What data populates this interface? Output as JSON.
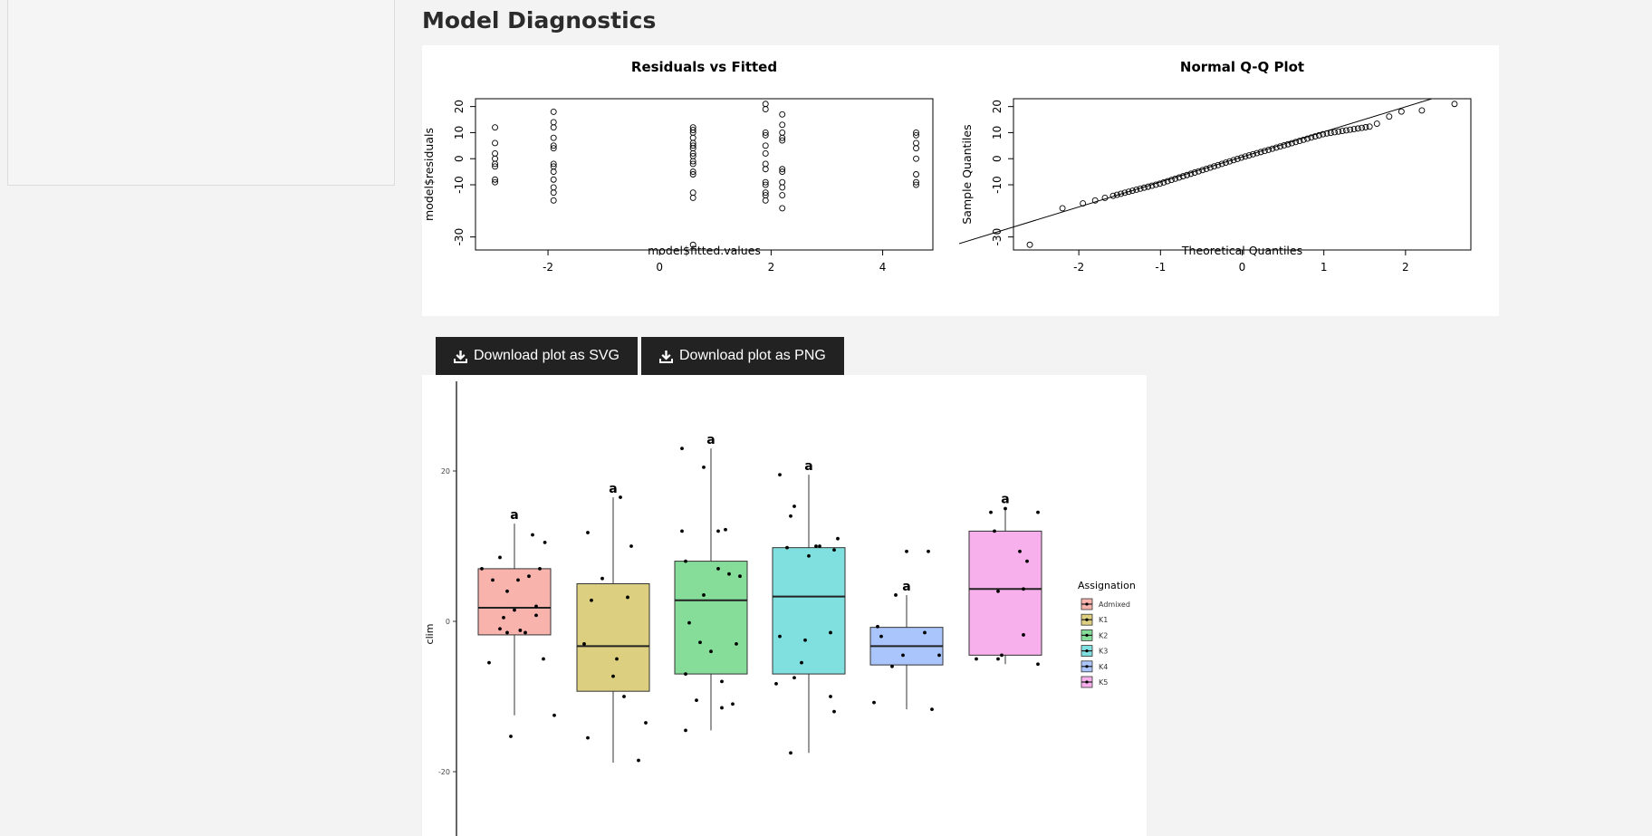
{
  "page": {
    "title": "Model Diagnostics",
    "download_svg_label": "Download plot as SVG",
    "download_png_label": "Download plot as PNG",
    "download_icon": "download-icon"
  },
  "chart_data": [
    {
      "type": "scatter",
      "title": "Residuals vs Fitted",
      "xlabel": "model$fitted.values",
      "ylabel": "model$residuals",
      "xlim": [
        -3.3,
        4.9
      ],
      "ylim": [
        -35,
        23
      ],
      "x_ticks": [
        "-2",
        "0",
        "2",
        "4"
      ],
      "x_tick_values": [
        -2,
        0,
        2,
        4
      ],
      "y_ticks": [
        "-30",
        "-10",
        "0",
        "10",
        "20"
      ],
      "y_tick_values": [
        -30,
        -10,
        0,
        10,
        20
      ],
      "groups": [
        {
          "x": -2.95,
          "y": [
            12,
            6,
            2,
            0,
            -2,
            -3,
            -8,
            -9
          ]
        },
        {
          "x": -1.9,
          "y": [
            18,
            14,
            12,
            8,
            5,
            4,
            -2,
            -3,
            -5,
            -8,
            -11,
            -13,
            -16
          ]
        },
        {
          "x": 0.6,
          "y": [
            12,
            11,
            10,
            8,
            6,
            5,
            4,
            2,
            1,
            -1,
            -2,
            -5,
            -6,
            -13,
            -15,
            -33
          ]
        },
        {
          "x": 1.9,
          "y": [
            21,
            19,
            10,
            9,
            5,
            2,
            -2,
            -4,
            -9,
            -10,
            -13,
            -14,
            -16
          ]
        },
        {
          "x": 2.2,
          "y": [
            17,
            13,
            10,
            8,
            7,
            -4,
            -5,
            -9,
            -11,
            -14,
            -19
          ]
        },
        {
          "x": 4.6,
          "y": [
            10,
            9,
            6,
            4,
            0,
            -6,
            -9,
            -10
          ]
        }
      ]
    },
    {
      "type": "scatter",
      "title": "Normal Q-Q Plot",
      "xlabel": "Theoretical Quantiles",
      "ylabel": "Sample Quantiles",
      "xlim": [
        -2.8,
        2.8
      ],
      "ylim": [
        -35,
        23
      ],
      "x_ticks": [
        "-2",
        "-1",
        "0",
        "1",
        "2"
      ],
      "x_tick_values": [
        -2,
        -1,
        0,
        1,
        2
      ],
      "y_ticks": [
        "-30",
        "-10",
        "0",
        "10",
        "20"
      ],
      "y_tick_values": [
        -30,
        -10,
        0,
        10,
        20
      ],
      "ref_line": {
        "intercept": 0.7,
        "slope": 9.6
      },
      "n_points": 77,
      "quantile_anchors": [
        {
          "x": -2.6,
          "y": -33
        },
        {
          "x": -2.2,
          "y": -19
        },
        {
          "x": -1.8,
          "y": -16
        },
        {
          "x": -1.0,
          "y": -9.5
        },
        {
          "x": 0.0,
          "y": 0.5
        },
        {
          "x": 1.0,
          "y": 9.5
        },
        {
          "x": 1.6,
          "y": 12.5
        },
        {
          "x": 1.9,
          "y": 18
        },
        {
          "x": 2.2,
          "y": 18.5
        },
        {
          "x": 2.6,
          "y": 21
        }
      ]
    },
    {
      "type": "box",
      "ylabel": "clim",
      "y_ticks": [
        "20",
        "0",
        "-20"
      ],
      "y_tick_values": [
        20,
        0,
        -20
      ],
      "ylim": [
        -29,
        32
      ],
      "legend_title": "Assignation",
      "legend_position": "right",
      "groups": [
        {
          "name": "Admixed",
          "color": "#f8b3ad",
          "q1": -1.8,
          "median": 1.8,
          "q3": 7,
          "whisker_low": -12.5,
          "whisker_high": 13,
          "letter": "a",
          "points": [
            [
              -0.45,
              7
            ],
            [
              -0.3,
              5.5
            ],
            [
              -0.2,
              8.5
            ],
            [
              -0.1,
              4
            ],
            [
              0.05,
              5.5
            ],
            [
              0.2,
              6
            ],
            [
              0.35,
              7
            ],
            [
              -0.35,
              -5.5
            ],
            [
              -0.15,
              0.5
            ],
            [
              0,
              1.5
            ],
            [
              0.15,
              -1.5
            ],
            [
              0.3,
              2
            ],
            [
              -0.05,
              -15.3
            ],
            [
              0.25,
              11.5
            ],
            [
              0.42,
              10.5
            ],
            [
              0.55,
              -12.5
            ],
            [
              0.4,
              -5
            ],
            [
              -0.1,
              -1.5
            ],
            [
              0.08,
              -1.2
            ],
            [
              0.3,
              0.8
            ],
            [
              -0.2,
              -1
            ]
          ]
        },
        {
          "name": "K1",
          "color": "#dccf7f",
          "q1": -9.3,
          "median": -3.3,
          "q3": 5,
          "whisker_low": -18.8,
          "whisker_high": 16.5,
          "letter": "a",
          "points": [
            [
              -0.35,
              11.8
            ],
            [
              -0.15,
              5.7
            ],
            [
              0.1,
              16.5
            ],
            [
              0.25,
              10
            ],
            [
              -0.3,
              2.8
            ],
            [
              0.2,
              3.2
            ],
            [
              -0.4,
              -3
            ],
            [
              0.05,
              -5
            ],
            [
              0,
              -7.3
            ],
            [
              0.15,
              -10
            ],
            [
              -0.35,
              -15.5
            ],
            [
              0.45,
              -13.5
            ],
            [
              0.35,
              -18.5
            ]
          ]
        },
        {
          "name": "K2",
          "color": "#86dd9a",
          "q1": -7,
          "median": 2.8,
          "q3": 8,
          "whisker_low": -14.5,
          "whisker_high": 23,
          "letter": "a",
          "points": [
            [
              -0.4,
              23
            ],
            [
              -0.1,
              20.5
            ],
            [
              0.1,
              12
            ],
            [
              -0.4,
              12
            ],
            [
              0.2,
              12.2
            ],
            [
              -0.35,
              8
            ],
            [
              0.1,
              7
            ],
            [
              0.4,
              6
            ],
            [
              -0.1,
              3.5
            ],
            [
              0.25,
              6.3
            ],
            [
              -0.3,
              -0.2
            ],
            [
              -0.15,
              -2.8
            ],
            [
              0.35,
              -3
            ],
            [
              0,
              -4
            ],
            [
              -0.2,
              -10.5
            ],
            [
              0.15,
              -8
            ],
            [
              -0.35,
              -14.5
            ],
            [
              0.15,
              -11.5
            ],
            [
              0.3,
              -11
            ],
            [
              -0.35,
              -7
            ]
          ]
        },
        {
          "name": "K3",
          "color": "#80e0e0",
          "q1": -7,
          "median": 3.3,
          "q3": 9.8,
          "whisker_low": -17.5,
          "whisker_high": 19.5,
          "letter": "a",
          "points": [
            [
              -0.4,
              19.5
            ],
            [
              -0.2,
              15.3
            ],
            [
              -0.25,
              14
            ],
            [
              -0.3,
              9.8
            ],
            [
              0.15,
              10
            ],
            [
              0.35,
              9.5
            ],
            [
              0.4,
              11
            ],
            [
              0,
              8.7
            ],
            [
              -0.4,
              -2
            ],
            [
              -0.05,
              -2.5
            ],
            [
              0.3,
              -1.5
            ],
            [
              -0.1,
              -5.5
            ],
            [
              -0.45,
              -8.3
            ],
            [
              -0.2,
              -7.5
            ],
            [
              0.3,
              -10
            ],
            [
              0.35,
              -12
            ],
            [
              -0.25,
              -17.5
            ],
            [
              0.1,
              10
            ]
          ]
        },
        {
          "name": "K4",
          "color": "#a9c5fb",
          "q1": -5.8,
          "median": -3.3,
          "q3": -0.8,
          "whisker_low": -11.7,
          "whisker_high": 3.5,
          "letter": "a",
          "points": [
            [
              -0.4,
              -0.7
            ],
            [
              -0.35,
              -2
            ],
            [
              -0.2,
              -6
            ],
            [
              -0.05,
              -4.5
            ],
            [
              0.25,
              -1.5
            ],
            [
              0.45,
              -4.5
            ],
            [
              -0.15,
              3.5
            ],
            [
              -0.45,
              -10.8
            ],
            [
              0.35,
              -11.7
            ],
            [
              0,
              9.3
            ],
            [
              0.3,
              9.3
            ]
          ]
        },
        {
          "name": "K5",
          "color": "#f8b0ec",
          "q1": -4.5,
          "median": 4.3,
          "q3": 12,
          "whisker_low": -5.7,
          "whisker_high": 15.1,
          "letter": "a",
          "points": [
            [
              -0.2,
              14.5
            ],
            [
              0,
              15
            ],
            [
              0.45,
              14.5
            ],
            [
              -0.15,
              12
            ],
            [
              0.2,
              9.3
            ],
            [
              0.3,
              8
            ],
            [
              -0.1,
              4
            ],
            [
              0.25,
              4.3
            ],
            [
              0.25,
              -1.8
            ],
            [
              -0.4,
              -5
            ],
            [
              -0.05,
              -4.5
            ],
            [
              -0.1,
              -5
            ],
            [
              0.45,
              -5.7
            ]
          ]
        }
      ]
    }
  ]
}
